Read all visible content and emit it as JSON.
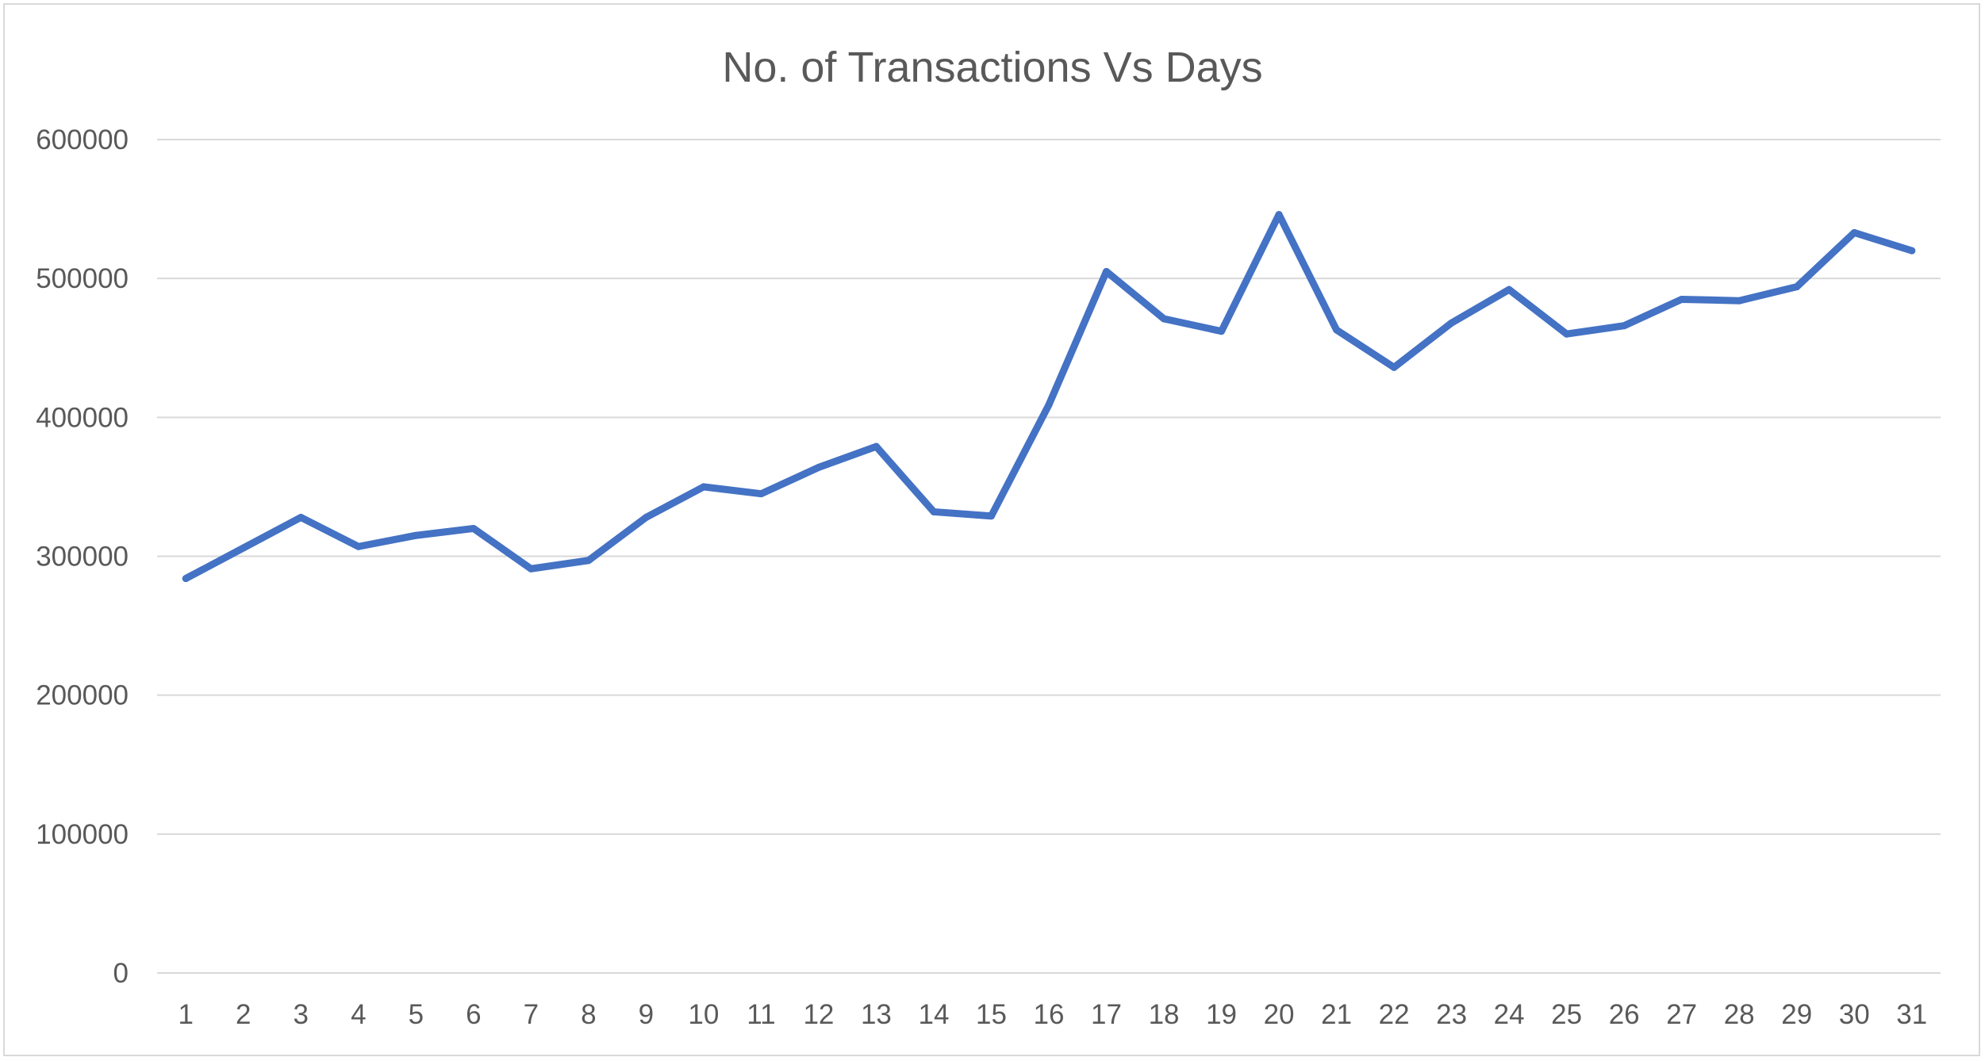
{
  "chart_data": {
    "type": "line",
    "title": "No. of Transactions Vs Days",
    "xlabel": "",
    "ylabel": "",
    "categories": [
      "1",
      "2",
      "3",
      "4",
      "5",
      "6",
      "7",
      "8",
      "9",
      "10",
      "11",
      "12",
      "13",
      "14",
      "15",
      "16",
      "17",
      "18",
      "19",
      "20",
      "21",
      "22",
      "23",
      "24",
      "25",
      "26",
      "27",
      "28",
      "29",
      "30",
      "31"
    ],
    "series": [
      {
        "values": [
          284000,
          306000,
          328000,
          307000,
          315000,
          320000,
          291000,
          297000,
          328000,
          350000,
          345000,
          364000,
          379000,
          332000,
          329000,
          409000,
          505000,
          471000,
          462000,
          546000,
          463000,
          436000,
          468000,
          492000,
          460000,
          466000,
          485000,
          484000,
          494000,
          533000,
          520000
        ],
        "color": "#4472c4"
      }
    ],
    "ylim": [
      0,
      600000
    ],
    "yticks": [
      "0",
      "100000",
      "200000",
      "300000",
      "400000",
      "500000",
      "600000"
    ],
    "grid": true,
    "legend": "none"
  }
}
